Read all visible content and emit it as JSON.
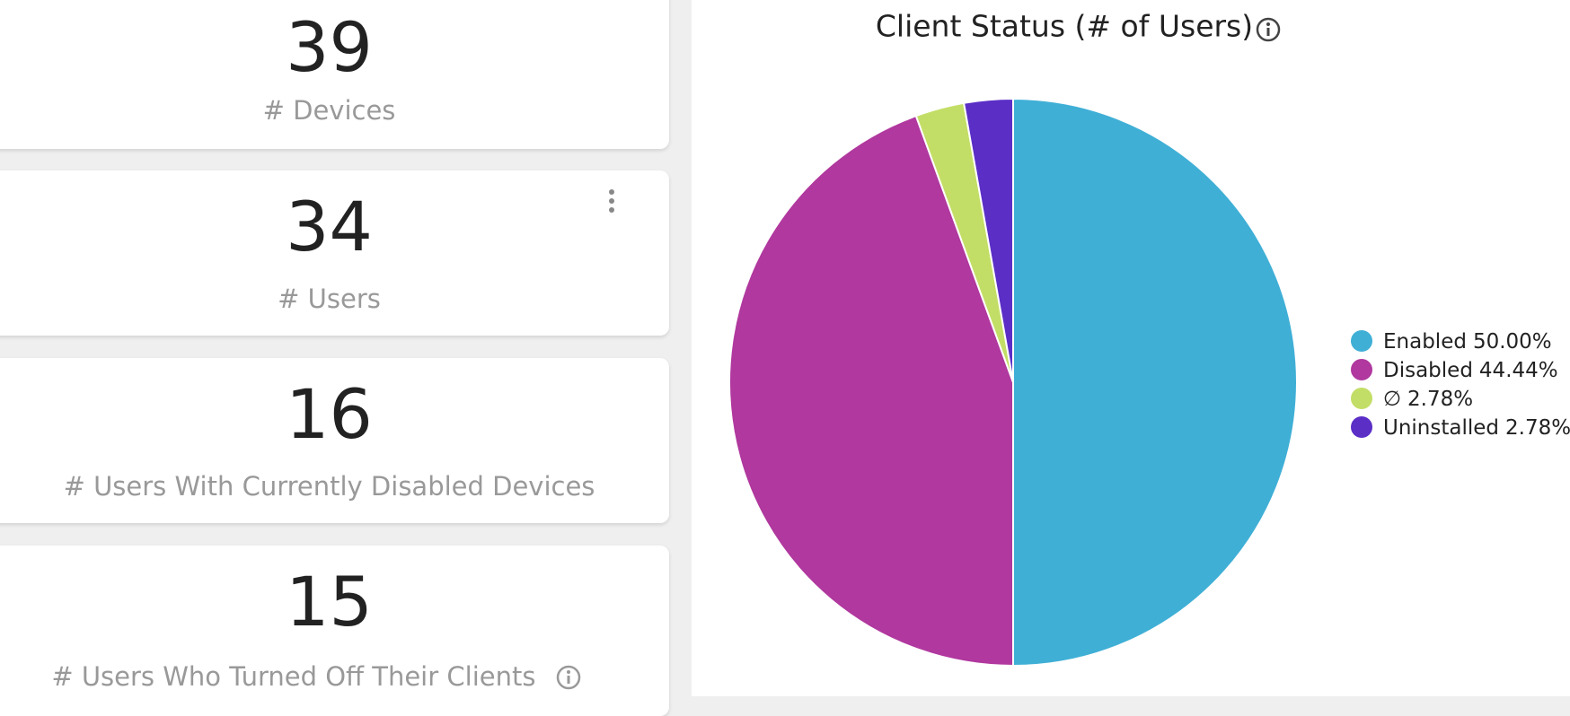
{
  "cards": [
    {
      "value": 39,
      "label": "# Devices"
    },
    {
      "value": 34,
      "label": "# Users"
    },
    {
      "value": 16,
      "label": "# Users With Currently Disabled Devices"
    },
    {
      "value": 15,
      "label": "# Users Who Turned Off Their Clients"
    }
  ],
  "chart_data": {
    "type": "pie",
    "title": "Client Status (# of Users)",
    "categories": [
      "Enabled",
      "Disabled",
      "∅",
      "Uninstalled"
    ],
    "values": [
      50.0,
      44.44,
      2.78,
      2.78
    ],
    "value_labels": [
      "50.00%",
      "44.44%",
      "2.78%",
      "2.78%"
    ],
    "colors": [
      "#3fafd6",
      "#b0389e",
      "#c3de66",
      "#5b2ec6"
    ],
    "legend": "right"
  }
}
